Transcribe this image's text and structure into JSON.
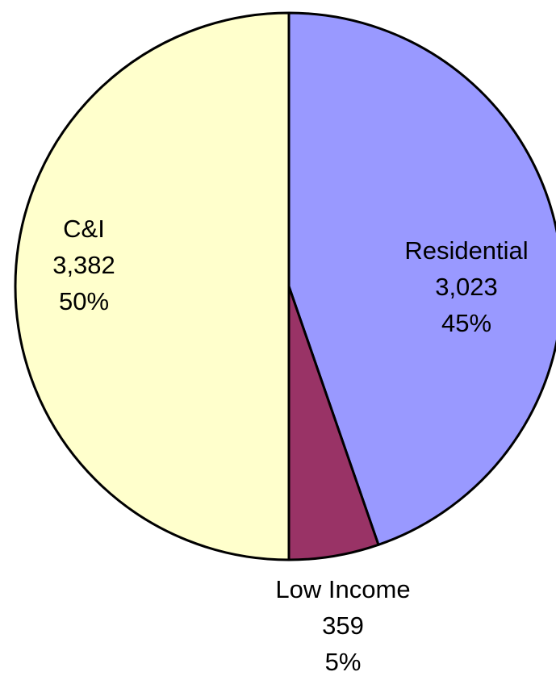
{
  "chart_data": {
    "type": "pie",
    "categories": [
      "Residential",
      "Low Income",
      "C&I"
    ],
    "values": [
      3023,
      359,
      3382
    ],
    "value_labels": [
      "3,023",
      "359",
      "3,382"
    ],
    "percents": [
      45,
      5,
      50
    ],
    "percent_labels": [
      "45%",
      "5%",
      "50%"
    ],
    "colors": [
      "#9999ff",
      "#993366",
      "#ffffcc"
    ]
  }
}
